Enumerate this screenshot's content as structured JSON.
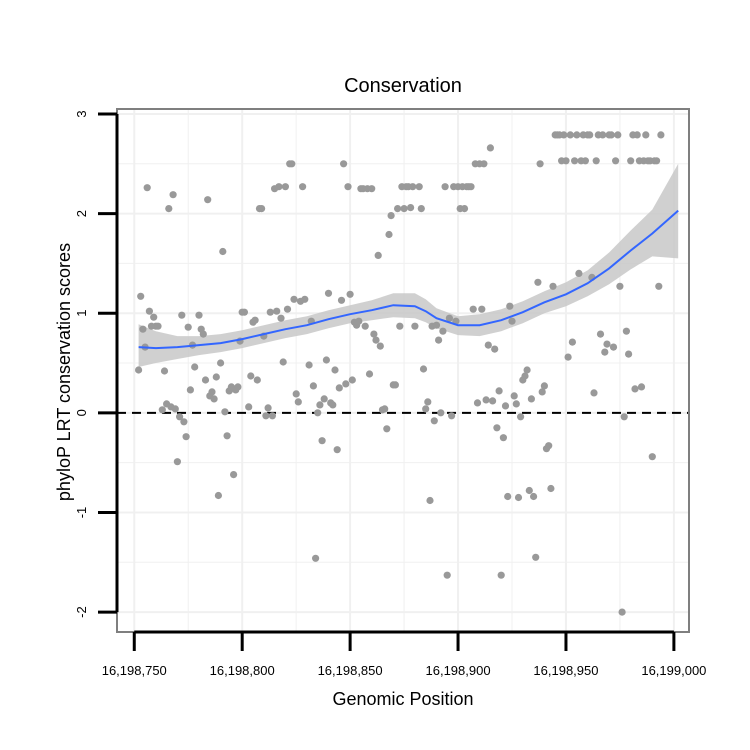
{
  "chart_data": {
    "type": "scatter",
    "title": "Conservation",
    "xlabel": "Genomic Position",
    "ylabel": "phyloP LRT conservation scores",
    "xlim": [
      16198742,
      16199007
    ],
    "ylim": [
      -2.2,
      3.05
    ],
    "x_ticks": [
      {
        "value": 16198750,
        "label": "16,198,750"
      },
      {
        "value": 16198800,
        "label": "16,198,800"
      },
      {
        "value": 16198850,
        "label": "16,198,850"
      },
      {
        "value": 16198900,
        "label": "16,198,900"
      },
      {
        "value": 16198950,
        "label": "16,198,950"
      },
      {
        "value": 16199000,
        "label": "16,199,000"
      }
    ],
    "y_ticks": [
      {
        "value": -2,
        "label": "-2"
      },
      {
        "value": -1,
        "label": "-1"
      },
      {
        "value": 0,
        "label": "0"
      },
      {
        "value": 1,
        "label": "1"
      },
      {
        "value": 2,
        "label": "2"
      },
      {
        "value": 3,
        "label": "3"
      }
    ],
    "grid": true,
    "reference_line": {
      "y": 0,
      "style": "dashed"
    },
    "colors": {
      "points": "#999999",
      "smooth_line": "#3366ff",
      "confidence_band": "#c8c8c8",
      "panel_border": "#7f7f7f",
      "grid": "#f0f0f0"
    },
    "points": [
      [
        16198752,
        0.43
      ],
      [
        16198753,
        1.17
      ],
      [
        16198754,
        0.84
      ],
      [
        16198755,
        0.66
      ],
      [
        16198756,
        2.26
      ],
      [
        16198757,
        1.02
      ],
      [
        16198758,
        0.87
      ],
      [
        16198759,
        0.96
      ],
      [
        16198760,
        0.87
      ],
      [
        16198761,
        0.87
      ],
      [
        16198763,
        0.03
      ],
      [
        16198764,
        0.42
      ],
      [
        16198765,
        0.09
      ],
      [
        16198766,
        2.05
      ],
      [
        16198767,
        0.06
      ],
      [
        16198768,
        2.19
      ],
      [
        16198769,
        0.04
      ],
      [
        16198770,
        -0.49
      ],
      [
        16198771,
        -0.04
      ],
      [
        16198772,
        0.98
      ],
      [
        16198773,
        -0.09
      ],
      [
        16198774,
        -0.24
      ],
      [
        16198775,
        0.86
      ],
      [
        16198776,
        0.23
      ],
      [
        16198777,
        0.68
      ],
      [
        16198778,
        0.46
      ],
      [
        16198780,
        0.98
      ],
      [
        16198781,
        0.84
      ],
      [
        16198782,
        0.79
      ],
      [
        16198783,
        0.33
      ],
      [
        16198784,
        2.14
      ],
      [
        16198785,
        0.17
      ],
      [
        16198786,
        0.21
      ],
      [
        16198787,
        0.14
      ],
      [
        16198788,
        0.36
      ],
      [
        16198789,
        -0.83
      ],
      [
        16198790,
        0.5
      ],
      [
        16198791,
        1.62
      ],
      [
        16198792,
        0.01
      ],
      [
        16198793,
        -0.23
      ],
      [
        16198794,
        0.22
      ],
      [
        16198795,
        0.26
      ],
      [
        16198796,
        -0.62
      ],
      [
        16198797,
        0.23
      ],
      [
        16198798,
        0.26
      ],
      [
        16198799,
        0.72
      ],
      [
        16198800,
        1.01
      ],
      [
        16198801,
        1.01
      ],
      [
        16198803,
        0.06
      ],
      [
        16198804,
        0.37
      ],
      [
        16198805,
        0.91
      ],
      [
        16198806,
        0.93
      ],
      [
        16198807,
        0.33
      ],
      [
        16198808,
        2.05
      ],
      [
        16198809,
        2.05
      ],
      [
        16198810,
        0.77
      ],
      [
        16198811,
        -0.03
      ],
      [
        16198812,
        0.05
      ],
      [
        16198813,
        1.01
      ],
      [
        16198814,
        -0.03
      ],
      [
        16198815,
        2.25
      ],
      [
        16198816,
        1.02
      ],
      [
        16198817,
        2.27
      ],
      [
        16198818,
        0.95
      ],
      [
        16198819,
        0.51
      ],
      [
        16198820,
        2.27
      ],
      [
        16198821,
        1.04
      ],
      [
        16198822,
        2.5
      ],
      [
        16198823,
        2.5
      ],
      [
        16198824,
        1.14
      ],
      [
        16198825,
        0.19
      ],
      [
        16198826,
        0.11
      ],
      [
        16198827,
        1.12
      ],
      [
        16198828,
        2.27
      ],
      [
        16198829,
        1.14
      ],
      [
        16198831,
        0.48
      ],
      [
        16198832,
        0.92
      ],
      [
        16198833,
        0.27
      ],
      [
        16198834,
        -1.46
      ],
      [
        16198835,
        0.0
      ],
      [
        16198836,
        0.08
      ],
      [
        16198837,
        -0.28
      ],
      [
        16198838,
        0.14
      ],
      [
        16198839,
        0.53
      ],
      [
        16198840,
        1.2
      ],
      [
        16198841,
        0.1
      ],
      [
        16198842,
        0.08
      ],
      [
        16198843,
        0.43
      ],
      [
        16198844,
        -0.37
      ],
      [
        16198845,
        0.25
      ],
      [
        16198846,
        1.13
      ],
      [
        16198847,
        2.5
      ],
      [
        16198848,
        0.29
      ],
      [
        16198849,
        2.27
      ],
      [
        16198850,
        1.19
      ],
      [
        16198851,
        0.33
      ],
      [
        16198852,
        0.91
      ],
      [
        16198853,
        0.88
      ],
      [
        16198854,
        0.92
      ],
      [
        16198855,
        2.25
      ],
      [
        16198856,
        2.25
      ],
      [
        16198857,
        0.87
      ],
      [
        16198858,
        2.25
      ],
      [
        16198859,
        0.39
      ],
      [
        16198860,
        2.25
      ],
      [
        16198861,
        0.79
      ],
      [
        16198862,
        0.73
      ],
      [
        16198863,
        1.58
      ],
      [
        16198864,
        0.67
      ],
      [
        16198865,
        0.03
      ],
      [
        16198866,
        0.04
      ],
      [
        16198867,
        -0.16
      ],
      [
        16198868,
        1.79
      ],
      [
        16198869,
        1.98
      ],
      [
        16198870,
        0.28
      ],
      [
        16198871,
        0.28
      ],
      [
        16198872,
        2.05
      ],
      [
        16198873,
        0.87
      ],
      [
        16198874,
        2.27
      ],
      [
        16198875,
        2.05
      ],
      [
        16198876,
        2.27
      ],
      [
        16198877,
        2.27
      ],
      [
        16198878,
        2.06
      ],
      [
        16198879,
        2.27
      ],
      [
        16198880,
        0.87
      ],
      [
        16198882,
        2.27
      ],
      [
        16198883,
        2.05
      ],
      [
        16198884,
        0.44
      ],
      [
        16198885,
        0.04
      ],
      [
        16198886,
        0.11
      ],
      [
        16198887,
        -0.88
      ],
      [
        16198888,
        0.87
      ],
      [
        16198889,
        -0.08
      ],
      [
        16198890,
        0.88
      ],
      [
        16198891,
        0.73
      ],
      [
        16198892,
        0.0
      ],
      [
        16198893,
        0.82
      ],
      [
        16198894,
        2.27
      ],
      [
        16198895,
        -1.63
      ],
      [
        16198896,
        0.95
      ],
      [
        16198897,
        -0.03
      ],
      [
        16198898,
        2.27
      ],
      [
        16198899,
        0.92
      ],
      [
        16198900,
        2.27
      ],
      [
        16198901,
        2.05
      ],
      [
        16198902,
        2.27
      ],
      [
        16198903,
        2.05
      ],
      [
        16198904,
        2.27
      ],
      [
        16198905,
        2.27
      ],
      [
        16198906,
        2.27
      ],
      [
        16198907,
        1.04
      ],
      [
        16198908,
        2.5
      ],
      [
        16198909,
        0.1
      ],
      [
        16198910,
        2.5
      ],
      [
        16198911,
        1.04
      ],
      [
        16198912,
        2.5
      ],
      [
        16198913,
        0.13
      ],
      [
        16198914,
        0.68
      ],
      [
        16198915,
        2.66
      ],
      [
        16198916,
        0.12
      ],
      [
        16198917,
        0.64
      ],
      [
        16198918,
        -0.15
      ],
      [
        16198919,
        0.22
      ],
      [
        16198920,
        -1.63
      ],
      [
        16198921,
        -0.25
      ],
      [
        16198922,
        0.07
      ],
      [
        16198923,
        -0.84
      ],
      [
        16198924,
        1.07
      ],
      [
        16198925,
        0.92
      ],
      [
        16198926,
        0.17
      ],
      [
        16198927,
        0.09
      ],
      [
        16198928,
        -0.85
      ],
      [
        16198929,
        -0.04
      ],
      [
        16198930,
        0.33
      ],
      [
        16198931,
        0.37
      ],
      [
        16198932,
        0.43
      ],
      [
        16198933,
        -0.78
      ],
      [
        16198934,
        0.14
      ],
      [
        16198935,
        -0.84
      ],
      [
        16198936,
        -1.45
      ],
      [
        16198937,
        1.31
      ],
      [
        16198938,
        2.5
      ],
      [
        16198939,
        0.21
      ],
      [
        16198940,
        0.27
      ],
      [
        16198941,
        -0.36
      ],
      [
        16198942,
        -0.33
      ],
      [
        16198943,
        -0.76
      ],
      [
        16198944,
        1.27
      ],
      [
        16198945,
        2.79
      ],
      [
        16198946,
        2.79
      ],
      [
        16198947,
        2.79
      ],
      [
        16198948,
        2.53
      ],
      [
        16198949,
        2.79
      ],
      [
        16198950,
        2.53
      ],
      [
        16198951,
        0.56
      ],
      [
        16198952,
        2.79
      ],
      [
        16198953,
        0.71
      ],
      [
        16198954,
        2.53
      ],
      [
        16198955,
        2.79
      ],
      [
        16198956,
        1.4
      ],
      [
        16198957,
        2.53
      ],
      [
        16198958,
        2.79
      ],
      [
        16198959,
        2.53
      ],
      [
        16198960,
        2.79
      ],
      [
        16198961,
        2.79
      ],
      [
        16198962,
        1.36
      ],
      [
        16198963,
        0.2
      ],
      [
        16198964,
        2.53
      ],
      [
        16198965,
        2.79
      ],
      [
        16198966,
        0.79
      ],
      [
        16198967,
        2.79
      ],
      [
        16198968,
        0.61
      ],
      [
        16198969,
        0.69
      ],
      [
        16198970,
        2.79
      ],
      [
        16198971,
        2.79
      ],
      [
        16198972,
        0.66
      ],
      [
        16198973,
        2.53
      ],
      [
        16198974,
        2.79
      ],
      [
        16198975,
        1.27
      ],
      [
        16198976,
        -2.0
      ],
      [
        16198977,
        -0.04
      ],
      [
        16198978,
        0.82
      ],
      [
        16198979,
        0.59
      ],
      [
        16198980,
        2.53
      ],
      [
        16198981,
        2.79
      ],
      [
        16198982,
        0.24
      ],
      [
        16198983,
        2.79
      ],
      [
        16198984,
        2.53
      ],
      [
        16198985,
        0.26
      ],
      [
        16198986,
        2.53
      ],
      [
        16198987,
        2.79
      ],
      [
        16198988,
        2.53
      ],
      [
        16198989,
        2.53
      ],
      [
        16198990,
        -0.44
      ],
      [
        16198991,
        2.53
      ],
      [
        16198992,
        2.53
      ],
      [
        16198993,
        1.27
      ],
      [
        16198994,
        2.79
      ]
    ],
    "smooth": {
      "x": [
        16198752,
        16198760,
        16198770,
        16198780,
        16198790,
        16198800,
        16198810,
        16198820,
        16198830,
        16198840,
        16198850,
        16198860,
        16198870,
        16198880,
        16198885,
        16198890,
        16198900,
        16198910,
        16198920,
        16198930,
        16198940,
        16198950,
        16198960,
        16198970,
        16198980,
        16198990,
        16199002
      ],
      "y": [
        0.66,
        0.65,
        0.66,
        0.68,
        0.7,
        0.74,
        0.79,
        0.84,
        0.88,
        0.94,
        0.99,
        1.03,
        1.08,
        1.07,
        1.02,
        0.95,
        0.88,
        0.88,
        0.93,
        1.01,
        1.11,
        1.19,
        1.3,
        1.45,
        1.63,
        1.8,
        2.03
      ],
      "lower": [
        0.46,
        0.5,
        0.54,
        0.58,
        0.61,
        0.65,
        0.7,
        0.75,
        0.79,
        0.85,
        0.9,
        0.93,
        0.96,
        0.95,
        0.91,
        0.85,
        0.78,
        0.77,
        0.82,
        0.9,
        1.0,
        1.07,
        1.17,
        1.29,
        1.44,
        1.57,
        1.55
      ],
      "upper": [
        0.89,
        0.82,
        0.77,
        0.77,
        0.79,
        0.83,
        0.88,
        0.93,
        0.97,
        1.03,
        1.08,
        1.13,
        1.2,
        1.2,
        1.14,
        1.05,
        0.97,
        0.99,
        1.04,
        1.12,
        1.22,
        1.31,
        1.43,
        1.61,
        1.83,
        2.04,
        2.5
      ]
    }
  }
}
